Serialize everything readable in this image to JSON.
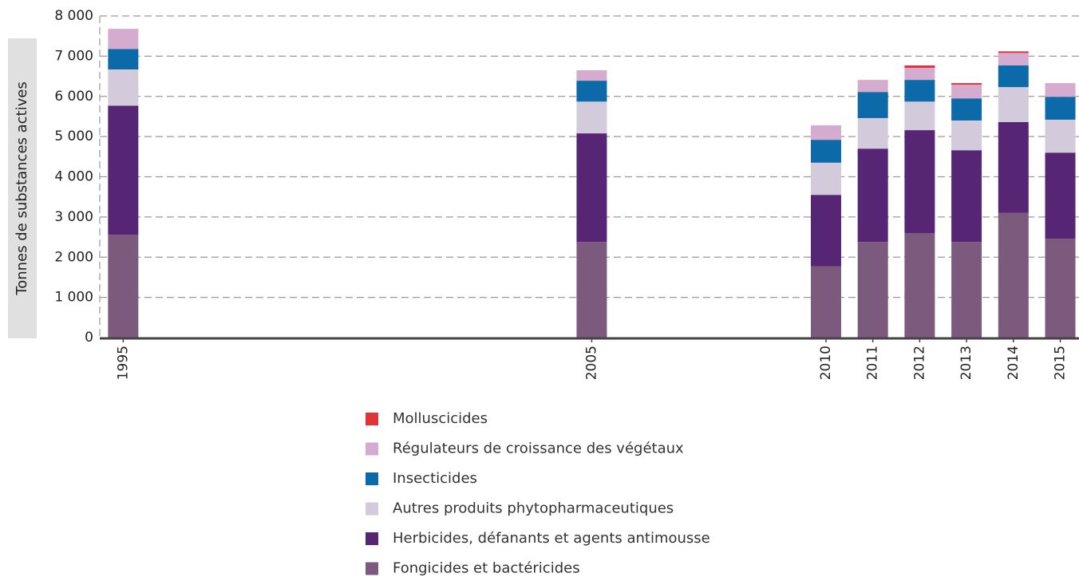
{
  "chart_data": {
    "type": "stacked-bar",
    "y_label": "Tonnes de substances actives",
    "x": [
      1995,
      2005,
      2010,
      2011,
      2012,
      2013,
      2014,
      2015
    ],
    "xlim": [
      1994.5,
      2015.4
    ],
    "xticks": [
      1995,
      2005,
      2010,
      2011,
      2012,
      2013,
      2014,
      2015
    ],
    "ylim": [
      0,
      8000
    ],
    "yticks": [
      0,
      {
        "value": 1000,
        "label": "1 000"
      },
      {
        "value": 2000,
        "label": "2 000"
      },
      {
        "value": 3000,
        "label": "3 000"
      },
      {
        "value": 4000,
        "label": "4 000"
      },
      {
        "value": 5000,
        "label": "5 000"
      },
      {
        "value": 6000,
        "label": "6 000"
      },
      {
        "value": 7000,
        "label": "7 000"
      },
      {
        "value": 8000,
        "label": "8 000"
      }
    ],
    "grid": true,
    "series": [
      {
        "name": "Fongicides et bactéricides",
        "color": "#7b5a7e",
        "values": [
          2560,
          2380,
          1770,
          2380,
          2600,
          2380,
          3100,
          2460
        ]
      },
      {
        "name": "Herbicides, défanants et agents antimousse",
        "color": "#562675",
        "values": [
          3210,
          2700,
          1780,
          2320,
          2560,
          2280,
          2260,
          2140
        ]
      },
      {
        "name": "Autres produits phytopharmaceutiques",
        "color": "#d3cbdc",
        "values": [
          900,
          790,
          800,
          760,
          710,
          740,
          870,
          820
        ]
      },
      {
        "name": "Insecticides",
        "color": "#0d6aa8",
        "values": [
          510,
          520,
          570,
          650,
          540,
          550,
          540,
          570
        ]
      },
      {
        "name": "Régulateurs de croissance des végétaux",
        "color": "#d4acd0",
        "values": [
          500,
          260,
          360,
          300,
          300,
          340,
          310,
          340
        ]
      },
      {
        "name": "Molluscicides",
        "color": "#e1333a",
        "values": [
          0,
          0,
          0,
          0,
          60,
          40,
          40,
          0
        ]
      }
    ]
  }
}
